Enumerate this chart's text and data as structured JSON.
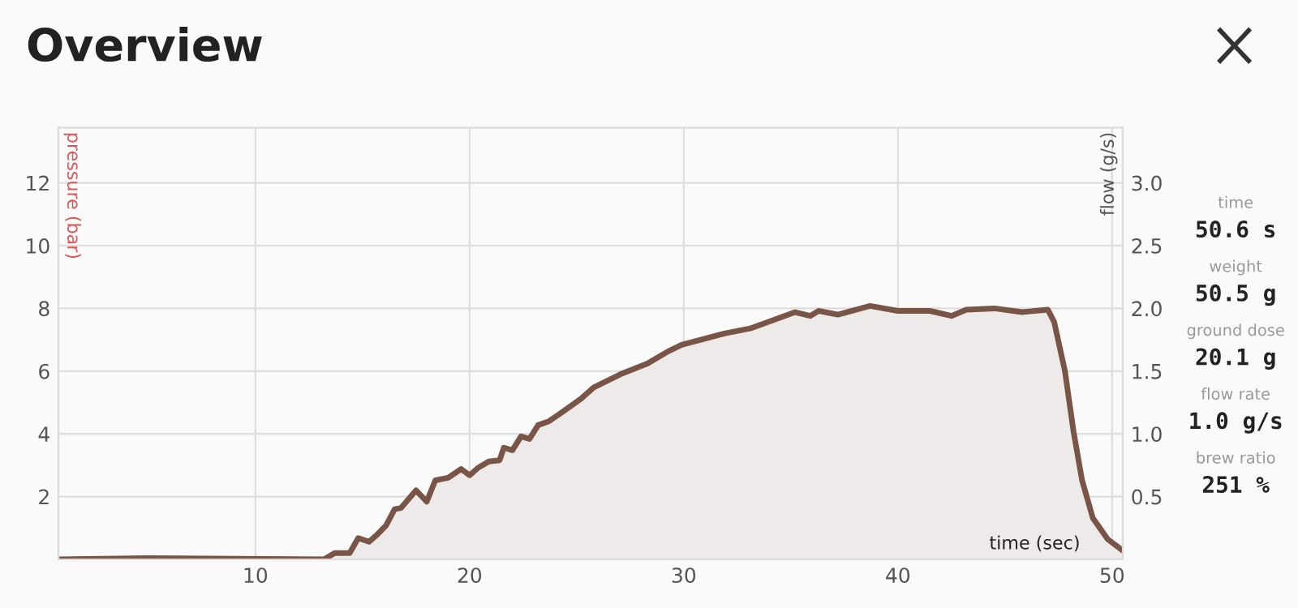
{
  "chart_data": {
    "type": "area",
    "title": "Overview",
    "xlabel": "time (sec)",
    "ylabel": "pressure (bar)",
    "y2label": "flow (g/s)",
    "x": [
      0.8,
      5,
      13.2,
      13.7,
      14.4,
      14.8,
      15.3,
      15.7,
      16.1,
      16.5,
      16.8,
      17.5,
      18.0,
      18.4,
      19.0,
      19.6,
      20.0,
      20.4,
      20.9,
      21.4,
      21.6,
      22.0,
      22.4,
      22.8,
      23.2,
      23.7,
      24.3,
      25.2,
      25.8,
      27.1,
      28.3,
      29.3,
      29.9,
      31.9,
      33.1,
      34.4,
      35.2,
      35.9,
      36.3,
      37.2,
      38.7,
      40.0,
      41.5,
      42.5,
      43.2,
      44.5,
      45.8,
      47.0,
      47.3,
      47.8,
      48.2,
      48.6,
      49.1,
      49.8,
      50.5
    ],
    "series": [
      {
        "axis": "y2",
        "color": "#795548",
        "values": [
          0.0,
          0.01,
          0.0,
          0.05,
          0.05,
          0.17,
          0.14,
          0.2,
          0.27,
          0.4,
          0.41,
          0.55,
          0.46,
          0.63,
          0.65,
          0.72,
          0.67,
          0.73,
          0.78,
          0.79,
          0.89,
          0.87,
          0.98,
          0.96,
          1.07,
          1.1,
          1.17,
          1.28,
          1.37,
          1.48,
          1.56,
          1.66,
          1.71,
          1.8,
          1.84,
          1.92,
          1.97,
          1.94,
          1.98,
          1.95,
          2.02,
          1.98,
          1.98,
          1.94,
          1.99,
          2.0,
          1.97,
          1.99,
          1.89,
          1.5,
          1.02,
          0.63,
          0.33,
          0.16,
          0.07
        ]
      }
    ],
    "xlim": [
      0.8,
      50.5
    ],
    "xticks": [
      10,
      20,
      30,
      40,
      50
    ],
    "ylim": [
      0,
      13.76
    ],
    "yticks": [
      2,
      4,
      6,
      8,
      10,
      12
    ],
    "y2lim": [
      0,
      3.44
    ],
    "y2ticks": [
      0.5,
      {
        "value": 1,
        "label": "1.0"
      },
      1.5,
      {
        "value": 2,
        "label": "2.0"
      },
      2.5,
      {
        "value": 3,
        "label": "3.0"
      }
    ],
    "grid": true,
    "annotations": [
      "time",
      "50.6 s",
      "weight",
      "50.5 g",
      "ground dose",
      "20.1 g",
      "flow rate",
      "1.0 g/s",
      "brew ratio",
      "251 %"
    ]
  }
}
